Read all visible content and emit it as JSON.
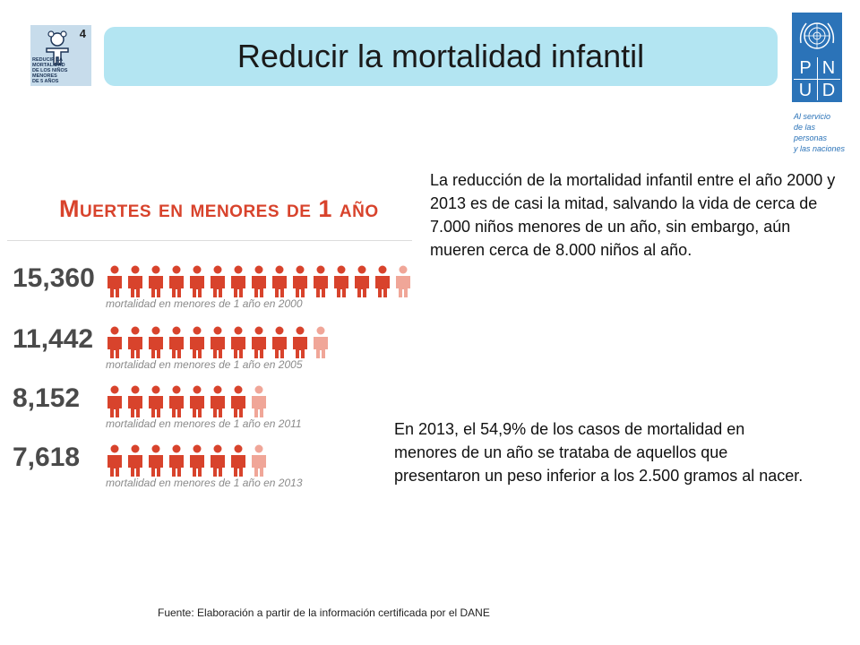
{
  "mdg_badge": {
    "number": "4",
    "caption": "REDUCIR LA MORTALIDAD\nDE LOS NIÑOS MENORES\nDE 5 AÑOS",
    "icon": "child-icon"
  },
  "title": "Reducir la mortalidad infantil",
  "pnud_logo": {
    "letters": [
      "P",
      "N",
      "U",
      "D"
    ],
    "tagline": "Al servicio\nde las personas\ny las naciones",
    "icon": "un-emblem-icon"
  },
  "infographic": {
    "heading": "Muertes en menores de 1 año",
    "rows": [
      {
        "number": "15,360",
        "caption": "mortalidad en menores de 1 año en 2000",
        "figures": 14.5
      },
      {
        "number": "11,442",
        "caption": "mortalidad en menores de 1 año en 2005",
        "figures": 11
      },
      {
        "number": "8,152",
        "caption": "mortalidad en menores de 1 año en 2011",
        "figures": 8
      },
      {
        "number": "7,618",
        "caption": "mortalidad en menores de 1 año en 2013",
        "figures": 7.5
      }
    ],
    "colors": {
      "heading": "#d8432c",
      "figure": "#d8432c",
      "figure_faded": "#f0a698"
    }
  },
  "paragraph_1": "La reducción de la mortalidad infantil entre el año 2000 y 2013 es de casi la mitad, salvando la vida de cerca de 7.000 niños menores de un año, sin embargo, aún mueren cerca de 8.000 niños al año.",
  "paragraph_2": "En 2013, el 54,9% de los casos de mortalidad en menores de un año se trataba de aquellos que presentaron un peso inferior a los 2.500 gramos al nacer.",
  "source_note": "Fuente: Elaboración a partir de la información certificada por el DANE"
}
